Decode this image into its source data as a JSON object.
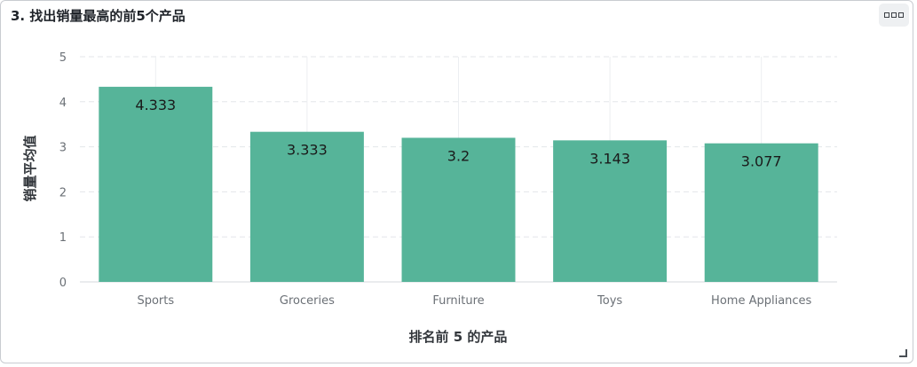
{
  "panel": {
    "title": "3. 找出销量最高的前5个产品",
    "menu_icon": "more-options-icon",
    "resize_icon": "resize-handle-icon"
  },
  "chart_data": {
    "type": "bar",
    "categories": [
      "Sports",
      "Groceries",
      "Furniture",
      "Toys",
      "Home Appliances"
    ],
    "values": [
      4.333,
      3.333,
      3.2,
      3.143,
      3.077
    ],
    "data_labels": [
      "4.333",
      "3.333",
      "3.2",
      "3.143",
      "3.077"
    ],
    "title": "3. 找出销量最高的前5个产品",
    "xlabel": "排名前 5 的产品",
    "ylabel": "销量平均值",
    "ylim": [
      0,
      5
    ],
    "yticks": [
      "0",
      "1",
      "2",
      "3",
      "4",
      "5"
    ],
    "grid": true,
    "legend": "none",
    "bar_color": "#56b499"
  }
}
